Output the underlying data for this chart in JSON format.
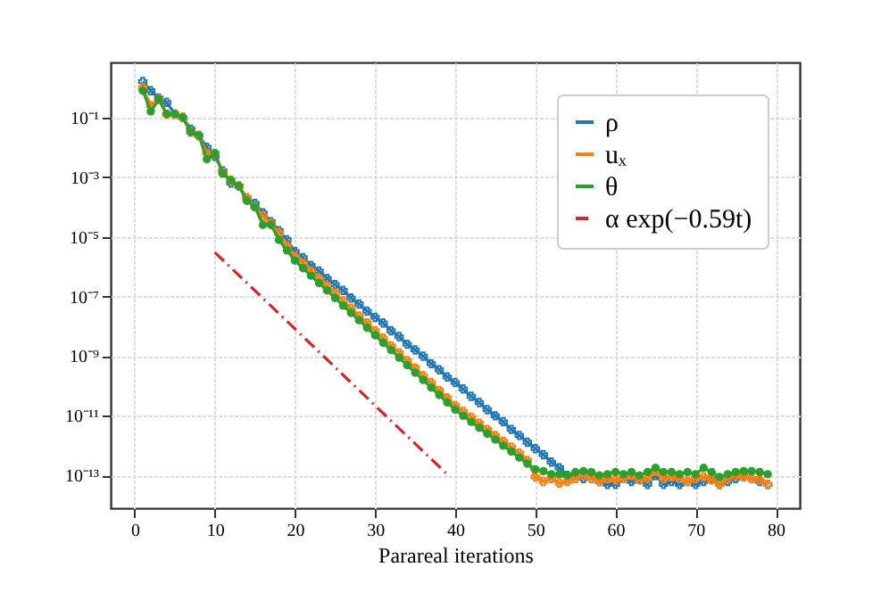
{
  "chart_data": {
    "type": "line",
    "xlabel": "Parareal iterations",
    "log": "y",
    "grid": true,
    "legend": "top right",
    "xlim": [
      -3,
      83
    ],
    "xticks": [
      0,
      10,
      20,
      30,
      40,
      50,
      60,
      70,
      80
    ],
    "ylim": [
      8e-15,
      7
    ],
    "yticks": [
      {
        "value": 0.1,
        "label": "10⁻¹"
      },
      {
        "value": 0.001,
        "label": "10⁻³"
      },
      {
        "value": 1e-05,
        "label": "10⁻⁵"
      },
      {
        "value": 1e-07,
        "label": "10⁻⁷"
      },
      {
        "value": 1e-09,
        "label": "10⁻⁹"
      },
      {
        "value": 1e-11,
        "label": "10⁻¹¹"
      },
      {
        "value": 1e-13,
        "label": "10⁻¹³"
      }
    ],
    "x": [
      1,
      2,
      3,
      4,
      5,
      6,
      7,
      8,
      9,
      10,
      11,
      12,
      13,
      14,
      15,
      16,
      17,
      18,
      19,
      20,
      21,
      22,
      23,
      24,
      25,
      26,
      27,
      28,
      29,
      30,
      31,
      32,
      33,
      34,
      35,
      36,
      37,
      38,
      39,
      40,
      41,
      42,
      43,
      44,
      45,
      46,
      47,
      48,
      49,
      50,
      51,
      52,
      53,
      54,
      55,
      56,
      57,
      58,
      59,
      60,
      61,
      62,
      63,
      64,
      65,
      66,
      67,
      68,
      69,
      70,
      71,
      72,
      73,
      74,
      75,
      76,
      77,
      78,
      79
    ],
    "series": [
      {
        "name": "ρ",
        "color": "#1f77b4",
        "marker": "cross",
        "line_style": "solid",
        "values": [
          1.6,
          0.79,
          0.45,
          0.32,
          0.13,
          0.1,
          0.04,
          0.025,
          0.01,
          0.005,
          0.0016,
          0.00063,
          0.0005,
          0.0002,
          0.00013,
          6.3e-05,
          3.2e-05,
          1.6e-05,
          7.9e-06,
          3.2e-06,
          2e-06,
          1.1e-06,
          7.1e-07,
          4e-07,
          2.5e-07,
          1.6e-07,
          8.9e-08,
          5.6e-08,
          3.2e-08,
          2e-08,
          1.3e-08,
          7.1e-09,
          4.5e-09,
          2.5e-09,
          1.6e-09,
          1e-09,
          5.6e-10,
          3.5e-10,
          2e-10,
          1.3e-10,
          7.9e-11,
          4.5e-11,
          2.8e-11,
          1.6e-11,
          1e-11,
          6.3e-12,
          3.5e-12,
          2.2e-12,
          1.3e-12,
          7.9e-13,
          5e-13,
          2.8e-13,
          1.8e-13,
          1e-13,
          1e-13,
          7.9e-14,
          1e-13,
          6.3e-14,
          5e-14,
          5e-14,
          7.9e-14,
          6.3e-14,
          7.9e-14,
          5e-14,
          1e-13,
          5e-14,
          6.3e-14,
          5e-14,
          6.3e-14,
          5e-14,
          6.3e-14,
          7.9e-14,
          5e-14,
          6.3e-14,
          7.9e-14,
          1e-13,
          7.9e-14,
          6.3e-14,
          5e-14
        ]
      },
      {
        "name": "uₓ",
        "color": "#ff7f0e",
        "marker": "cross",
        "line_style": "solid",
        "values": [
          1.0,
          0.25,
          0.4,
          0.13,
          0.13,
          0.1,
          0.032,
          0.025,
          0.0063,
          0.0063,
          0.0014,
          0.00079,
          0.0005,
          0.0002,
          0.0001,
          5e-05,
          2.8e-05,
          1.3e-05,
          5e-06,
          2.2e-06,
          1.3e-06,
          7.1e-07,
          4e-07,
          2.2e-07,
          1.3e-07,
          7.1e-08,
          4e-08,
          2.2e-08,
          1.3e-08,
          7.1e-09,
          4e-09,
          2.2e-09,
          1.3e-09,
          7.1e-10,
          4e-10,
          2.2e-10,
          1.3e-10,
          7.1e-11,
          4e-11,
          2.2e-11,
          1.4e-11,
          8.9e-12,
          5.6e-12,
          3.5e-12,
          2.2e-12,
          1.4e-12,
          8.9e-13,
          5.6e-13,
          3.2e-13,
          8.9e-14,
          6.3e-14,
          7.9e-14,
          5.6e-14,
          6.3e-14,
          7.9e-14,
          1e-13,
          7.9e-14,
          6.3e-14,
          7.9e-14,
          7.1e-14,
          7.9e-14,
          1e-13,
          7.1e-14,
          7.9e-14,
          1.4e-13,
          7.9e-14,
          8.9e-14,
          7.9e-14,
          6.3e-14,
          7.9e-14,
          8.9e-14,
          7.1e-14,
          5e-14,
          7.9e-14,
          1e-13,
          8.9e-14,
          7.9e-14,
          7.1e-14,
          5e-14
        ]
      },
      {
        "name": "θ",
        "color": "#2ca02c",
        "marker": "circle",
        "line_style": "solid",
        "values": [
          0.79,
          0.16,
          0.4,
          0.13,
          0.13,
          0.1,
          0.032,
          0.025,
          0.004,
          0.0063,
          0.0013,
          0.00079,
          0.0005,
          0.00016,
          0.0001,
          2.5e-05,
          2.5e-05,
          7.9e-06,
          3.5e-06,
          1.6e-06,
          8.9e-07,
          5e-07,
          2.8e-07,
          1.6e-07,
          8.9e-08,
          5e-08,
          2.8e-08,
          1.6e-08,
          8.9e-09,
          5e-09,
          2.8e-09,
          1.6e-09,
          8.9e-10,
          5e-10,
          2.8e-10,
          1.6e-10,
          8.9e-11,
          5e-11,
          2.8e-11,
          1.6e-11,
          1e-11,
          6.3e-12,
          4e-12,
          2.5e-12,
          1.6e-12,
          1e-12,
          6.3e-13,
          4e-13,
          2.5e-13,
          1.6e-13,
          1.4e-13,
          1.1e-13,
          1.1e-13,
          1e-13,
          1.3e-13,
          1.4e-13,
          1.3e-13,
          1e-13,
          1.1e-13,
          1.3e-13,
          1.1e-13,
          1.3e-13,
          1e-13,
          1.3e-13,
          1.8e-13,
          1.3e-13,
          1.3e-13,
          1.1e-13,
          1.3e-13,
          1.1e-13,
          1.8e-13,
          1.3e-13,
          8.9e-14,
          1.1e-13,
          1.3e-13,
          1.4e-13,
          1.4e-13,
          1.3e-13,
          1.1e-13
        ]
      },
      {
        "name": "α exp(−0.59t)",
        "color": "#d62728",
        "marker": "none",
        "line_style": "dashed",
        "x": [
          10,
          20,
          30,
          39
        ],
        "values": [
          3e-06,
          8.2e-09,
          2.2e-11,
          1.1e-13
        ]
      }
    ]
  }
}
